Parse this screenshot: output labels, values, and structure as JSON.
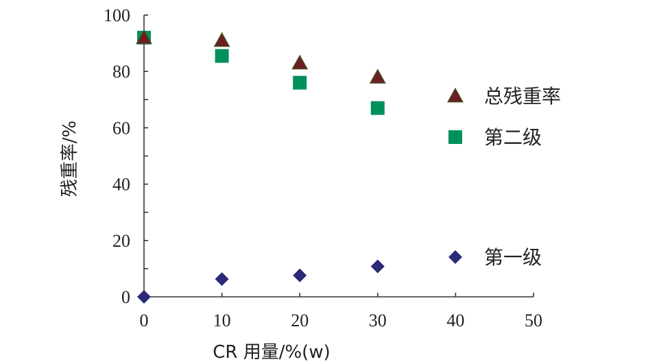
{
  "chart_data": {
    "type": "scatter",
    "xlabel": "CR 用量/%(w)",
    "ylabel": "残重率/%",
    "xlim": [
      0,
      50
    ],
    "ylim": [
      0,
      100
    ],
    "xticks": [
      0,
      10,
      20,
      30,
      40,
      50
    ],
    "yticks": [
      0,
      20,
      40,
      60,
      80,
      100
    ],
    "grid": false,
    "legend_position": "right",
    "series": [
      {
        "name": "总残重率",
        "marker": "triangle",
        "color": "#6b1f25",
        "x": [
          0,
          10,
          20,
          30
        ],
        "y": [
          92,
          91,
          83,
          78
        ]
      },
      {
        "name": "第二级",
        "marker": "square",
        "color": "#00915a",
        "x": [
          0,
          10,
          20,
          30
        ],
        "y": [
          92,
          85.5,
          76,
          67
        ]
      },
      {
        "name": "第一级",
        "marker": "diamond",
        "color": "#2b2a78",
        "x": [
          0,
          10,
          20,
          30
        ],
        "y": [
          0,
          6.3,
          7.6,
          10.8
        ]
      }
    ]
  }
}
